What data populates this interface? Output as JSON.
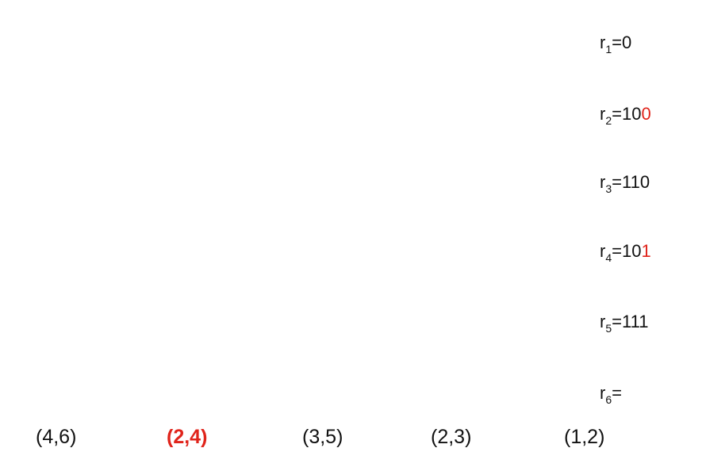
{
  "registers": [
    {
      "name": "r",
      "sub": "1",
      "eq": "=",
      "value": "0",
      "highlight": ""
    },
    {
      "name": "r",
      "sub": "2",
      "eq": "=",
      "value": "10",
      "highlight": "0"
    },
    {
      "name": "r",
      "sub": "3",
      "eq": "=",
      "value": "110",
      "highlight": ""
    },
    {
      "name": "r",
      "sub": "4",
      "eq": "=",
      "value": "10",
      "highlight": "1"
    },
    {
      "name": "r",
      "sub": "5",
      "eq": "=",
      "value": "111",
      "highlight": ""
    },
    {
      "name": "r",
      "sub": "6",
      "eq": "=",
      "value": "",
      "highlight": ""
    }
  ],
  "pairs": [
    {
      "label": "(4,6)",
      "highlighted": false
    },
    {
      "label": "(2,4)",
      "highlighted": true
    },
    {
      "label": "(3,5)",
      "highlighted": false
    },
    {
      "label": "(2,3)",
      "highlighted": false
    },
    {
      "label": "(1,2)",
      "highlighted": false
    }
  ],
  "colors": {
    "text": "#111111",
    "highlight": "#e0241b",
    "background": "#ffffff"
  }
}
